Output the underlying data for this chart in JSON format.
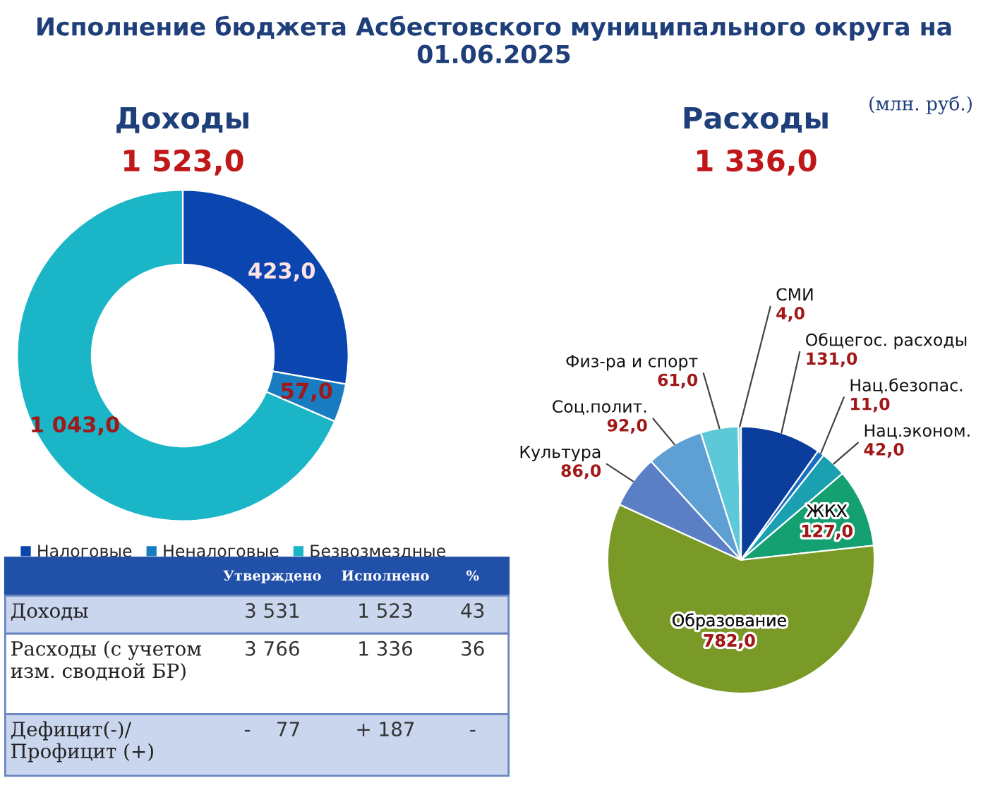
{
  "chart_data": [
    {
      "type": "other",
      "title": "Исполнение бюджета Асбестовского муниципального округа на 01.06.2025",
      "annotations": [
        "(млн. руб.)"
      ]
    },
    {
      "type": "donut",
      "title": "Доходы",
      "subtitle": "1 523,0",
      "categories": [
        "Налоговые",
        "Неналоговые",
        "Безвозмездные"
      ],
      "values": [
        423,
        57,
        1043
      ],
      "colors": [
        "#0b45b0",
        "#1a7cc0",
        "#1bb5c8"
      ],
      "value_labels": [
        "423,0",
        "57,0",
        "1 043,0"
      ],
      "legend": "bottom"
    },
    {
      "type": "pie",
      "title": "Расходы",
      "subtitle": "1 336,0",
      "categories": [
        "Общегос. расходы",
        "Нац.безопас.",
        "Нац.эконом.",
        "ЖКХ",
        "Образование",
        "Культура",
        "Соц.полит.",
        "Физ-ра и спорт",
        "СМИ"
      ],
      "values": [
        131,
        11,
        42,
        127,
        782,
        86,
        92,
        61,
        4
      ],
      "colors": [
        "#0a3d9c",
        "#1a6fc4",
        "#1aa0b0",
        "#14a070",
        "#7a9a28",
        "#5b7fc4",
        "#5ea0d4",
        "#5cc8d8",
        "#8aa8b0"
      ],
      "value_labels": [
        "131,0",
        "11,0",
        "42,0",
        "127,0",
        "782,0",
        "86,0",
        "92,0",
        "61,0",
        "4,0"
      ]
    },
    {
      "type": "other",
      "categories": [
        null,
        "Утверждено",
        "Исполнено",
        "%"
      ],
      "y_categories": [
        "Доходы",
        "Расходы (с учетом изм. сводной БР)",
        "Дефицит(-)/ Профицит (+)"
      ],
      "cell_labels": [
        [
          "3 531",
          "1 523",
          "43"
        ],
        [
          "3 766",
          "1 336",
          "36"
        ],
        [
          "-    77",
          "+ 187",
          "-"
        ]
      ]
    }
  ]
}
